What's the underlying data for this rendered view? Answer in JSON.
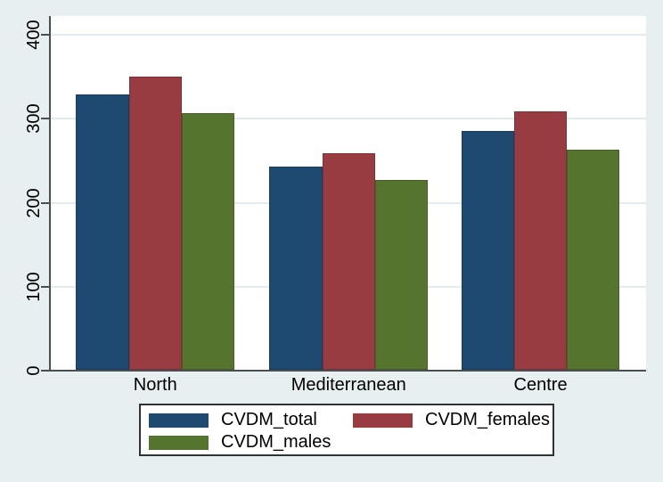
{
  "colors": {
    "page_background": "#e8eff1",
    "plot_background": "#ffffff",
    "gridline": "#e2ebee",
    "axis": "#4a4f52",
    "text": "#000000",
    "legend_border": "#2e3436",
    "legend_background": "#ffffff"
  },
  "chart_data": {
    "type": "bar",
    "title": "",
    "xlabel": "",
    "ylabel": "",
    "categories": [
      "North",
      "Mediterranean",
      "Centre"
    ],
    "series": [
      {
        "name": "CVDM_total",
        "color": "#1e4a72",
        "values": [
          328,
          242,
          284
        ]
      },
      {
        "name": "CVDM_females",
        "color": "#983c42",
        "values": [
          349,
          258,
          308
        ]
      },
      {
        "name": "CVDM_males",
        "color": "#55752f",
        "values": [
          306,
          226,
          262
        ]
      }
    ],
    "y_ticks": [
      0,
      100,
      200,
      300,
      400
    ],
    "ylim": [
      0,
      421
    ],
    "grid": true,
    "y_tick_label_rotation": 90,
    "legend_position": "bottom-center",
    "legend_columns": 2
  }
}
